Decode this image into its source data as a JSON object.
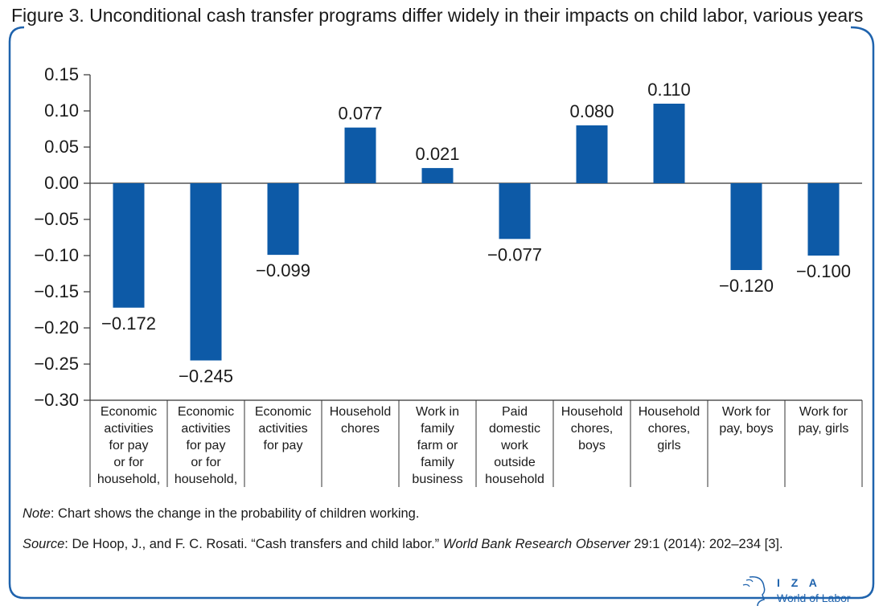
{
  "figure": {
    "title": "Figure 3. Unconditional cash transfer programs differ widely in their impacts on child labor, various years",
    "note_label": "Note",
    "note_text": ": Chart shows the change in the probability of children working.",
    "source_label": "Source",
    "source_text_1": ": De Hoop, J., and F. C. Rosati. “Cash transfers and child labor.” ",
    "source_journal": "World Bank Research Observer",
    "source_text_2": " 29:1 (2014): 202–234 [3].",
    "logo_top": "I Z A",
    "logo_bottom": "World of Labor"
  },
  "colors": {
    "bar": "#0d5aa7",
    "frame": "#1f63ad",
    "axis": "#333333",
    "text": "#1a1a1a"
  },
  "chart_data": {
    "type": "bar",
    "title": "Figure 3. Unconditional cash transfer programs differ widely in their impacts on child labor, various years",
    "xlabel": "",
    "ylabel": "",
    "ylim": [
      -0.3,
      0.15
    ],
    "yticks": [
      "0.15",
      "0.10",
      "0.05",
      "0.00",
      "−0.05",
      "−0.10",
      "−0.15",
      "−0.20",
      "−0.25",
      "−0.30"
    ],
    "ytick_values": [
      0.15,
      0.1,
      0.05,
      0.0,
      -0.05,
      -0.1,
      -0.15,
      -0.2,
      -0.25,
      -0.3
    ],
    "categories": [
      "Economic activities for pay or for household,",
      "Economic activities for pay or for household,",
      "Economic activities for pay",
      "Household chores",
      "Work in family farm or family business",
      "Paid domestic work outside household",
      "Household chores, boys",
      "Household chores, girls",
      "Work for pay, boys",
      "Work for pay, girls"
    ],
    "category_lines": [
      [
        "Economic",
        "activities",
        "for pay",
        "or for",
        "household,"
      ],
      [
        "Economic",
        "activities",
        "for pay",
        "or for",
        "household,"
      ],
      [
        "Economic",
        "activities",
        "for pay"
      ],
      [
        "Household",
        "chores"
      ],
      [
        "Work in",
        "family",
        "farm or",
        "family",
        "business"
      ],
      [
        "Paid",
        "domestic",
        "work",
        "outside",
        "household"
      ],
      [
        "Household",
        "chores,",
        "boys"
      ],
      [
        "Household",
        "chores,",
        "girls"
      ],
      [
        "Work for",
        "pay, boys"
      ],
      [
        "Work for",
        "pay, girls"
      ]
    ],
    "values": [
      -0.172,
      -0.245,
      -0.099,
      0.077,
      0.021,
      -0.077,
      0.08,
      0.11,
      -0.12,
      -0.1
    ],
    "data_labels": [
      "−0.172",
      "−0.245",
      "−0.099",
      "0.077",
      "0.021",
      "−0.077",
      "0.080",
      "0.110",
      "−0.120",
      "−0.100"
    ],
    "grid": false,
    "legend": "none"
  }
}
